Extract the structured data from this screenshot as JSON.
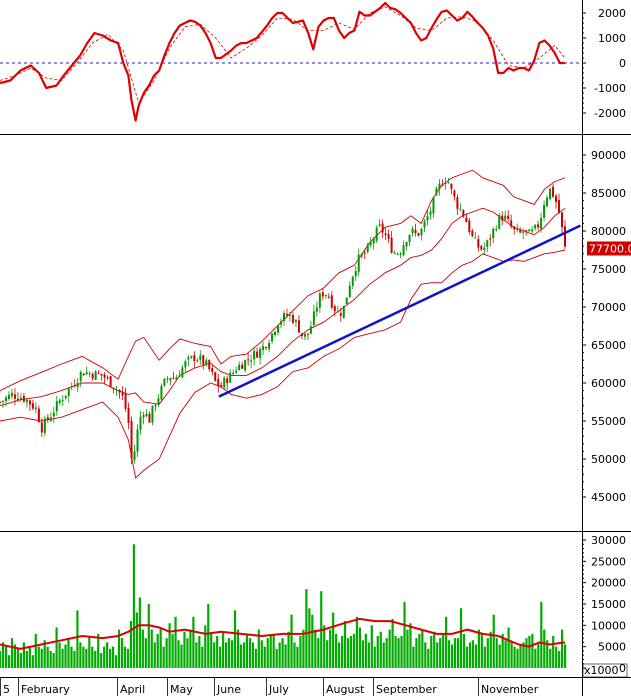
{
  "chart_data": [
    {
      "panel": "oscillator",
      "type": "line",
      "ylim": [
        -2800,
        2500
      ],
      "y_ticks": [
        2000,
        1000,
        0,
        -1000,
        -2000
      ],
      "zero_line": 0,
      "series": [
        {
          "color": "#dd0000",
          "style": "solid",
          "x": [
            0,
            10,
            20,
            30,
            38,
            45,
            55,
            62,
            70,
            78,
            85,
            92,
            100,
            108,
            115,
            120,
            125,
            128,
            132,
            135,
            140,
            145,
            150,
            155,
            160,
            165,
            170,
            175,
            180,
            185,
            190,
            195,
            200,
            205,
            210,
            215,
            220,
            225,
            230,
            235,
            240,
            245,
            250,
            255,
            260,
            265,
            270,
            275,
            280,
            285,
            290,
            295,
            300,
            305,
            310,
            315,
            320,
            325,
            330,
            335,
            340,
            345,
            350,
            355,
            360,
            365,
            370,
            375,
            380,
            385,
            390,
            395,
            400,
            405,
            410,
            415,
            420,
            425,
            430,
            435,
            440,
            445,
            450,
            455,
            460,
            465,
            470,
            475,
            480,
            485,
            490,
            495,
            500,
            505,
            510,
            515,
            520,
            525,
            530,
            535,
            540,
            545,
            550
          ],
          "y": [
            -800,
            -700,
            -300,
            -100,
            -400,
            -1000,
            -900,
            -500,
            -100,
            300,
            800,
            1200,
            1100,
            900,
            800,
            0,
            -500,
            -1500,
            -2300,
            -1700,
            -1200,
            -900,
            -500,
            -300,
            300,
            800,
            1200,
            1500,
            1600,
            1700,
            1650,
            1500,
            1200,
            800,
            200,
            200,
            350,
            500,
            700,
            800,
            800,
            900,
            1000,
            1250,
            1500,
            1800,
            2000,
            2000,
            1800,
            1600,
            1650,
            1700,
            1200,
            550,
            1450,
            1700,
            1800,
            1800,
            1300,
            1000,
            1200,
            1300,
            2050,
            1900,
            1900,
            2050,
            2200,
            2400,
            2200,
            2150,
            2000,
            1800,
            1600,
            1200,
            900,
            1000,
            1400,
            1750,
            2050,
            2100,
            1900,
            1700,
            1800,
            2050,
            1850,
            1600,
            1400,
            1100,
            600,
            -400,
            -400,
            -200,
            -300,
            -200,
            -200,
            -300,
            100,
            800,
            900,
            700,
            400,
            0,
            0
          ]
        },
        {
          "color": "#dd0000",
          "style": "dashed",
          "x": [
            0,
            15,
            30,
            45,
            60,
            75,
            90,
            105,
            120,
            135,
            150,
            165,
            180,
            195,
            210,
            225,
            240,
            255,
            270,
            285,
            300,
            315,
            330,
            345,
            360,
            375,
            390,
            405,
            420,
            435,
            450,
            465,
            480,
            495,
            510,
            525,
            540,
            550
          ],
          "y": [
            -700,
            -500,
            -200,
            -600,
            -700,
            0,
            800,
            1150,
            500,
            -1600,
            -700,
            600,
            1450,
            1550,
            1000,
            200,
            600,
            1100,
            1800,
            1750,
            1300,
            1300,
            1600,
            1350,
            2000,
            2250,
            1900,
            1400,
            1300,
            1800,
            1850,
            1650,
            900,
            -100,
            -200,
            200,
            700,
            200
          ]
        }
      ]
    },
    {
      "panel": "price",
      "type": "candlestick",
      "ylim": [
        42000,
        92000
      ],
      "y_ticks": [
        90000,
        85000,
        80000,
        75000,
        70000,
        65000,
        60000,
        55000,
        50000,
        45000
      ],
      "last_price_label": "77700.0",
      "bollinger": {
        "upper": {
          "x": [
            0,
            20,
            40,
            60,
            80,
            100,
            115,
            125,
            132,
            140,
            155,
            165,
            175,
            190,
            205,
            215,
            225,
            240,
            255,
            270,
            285,
            300,
            315,
            330,
            345,
            360,
            375,
            390,
            400,
            410,
            420,
            430,
            440,
            450,
            460,
            470,
            480,
            490,
            500,
            510,
            520,
            530,
            540,
            550
          ],
          "y": [
            59000,
            60300,
            61400,
            62500,
            63500,
            62000,
            60500,
            63500,
            65500,
            66000,
            63000,
            64500,
            65800,
            65200,
            64800,
            62500,
            63500,
            63800,
            65500,
            67500,
            69500,
            71500,
            72500,
            74500,
            75500,
            78500,
            80500,
            81000,
            82000,
            81000,
            84000,
            86000,
            87000,
            87500,
            88000,
            87000,
            86500,
            86000,
            84500,
            84000,
            83500,
            85500,
            86500,
            87000
          ]
        },
        "middle": {
          "x": [
            0,
            20,
            40,
            60,
            80,
            100,
            115,
            125,
            132,
            140,
            155,
            165,
            175,
            190,
            205,
            215,
            225,
            240,
            255,
            270,
            285,
            300,
            315,
            330,
            345,
            360,
            375,
            390,
            400,
            410,
            420,
            430,
            440,
            450,
            460,
            470,
            480,
            490,
            500,
            510,
            520,
            530,
            540,
            550
          ],
          "y": [
            57000,
            57800,
            58200,
            59000,
            60000,
            60000,
            59000,
            58500,
            58700,
            57500,
            57200,
            59000,
            61000,
            62000,
            62600,
            61500,
            61000,
            61000,
            62000,
            63500,
            65500,
            67000,
            68000,
            69500,
            71000,
            73000,
            74500,
            75500,
            76500,
            76800,
            77500,
            79000,
            81000,
            82000,
            82500,
            83000,
            82500,
            81500,
            80500,
            80000,
            79500,
            80500,
            82000,
            83000
          ]
        },
        "lower": {
          "x": [
            0,
            20,
            40,
            60,
            80,
            100,
            115,
            125,
            132,
            140,
            155,
            165,
            175,
            190,
            205,
            215,
            225,
            240,
            255,
            270,
            285,
            300,
            315,
            330,
            345,
            360,
            375,
            390,
            400,
            410,
            420,
            430,
            440,
            450,
            460,
            470,
            480,
            490,
            500,
            510,
            520,
            530,
            540,
            550
          ],
          "y": [
            55000,
            55500,
            55000,
            55500,
            56500,
            57500,
            55500,
            52500,
            47500,
            48500,
            50000,
            53000,
            56000,
            58800,
            60000,
            59500,
            58500,
            58000,
            58500,
            59500,
            61500,
            62000,
            63500,
            64500,
            66000,
            66500,
            67000,
            68000,
            71000,
            73000,
            73200,
            73200,
            74500,
            75500,
            76000,
            77000,
            76500,
            76000,
            76200,
            76000,
            76500,
            77000,
            77200,
            77500
          ]
        }
      },
      "trendline": {
        "x": [
          213,
          565
        ],
        "y": [
          58200,
          80700
        ],
        "color": "#1111cc"
      },
      "closes_sampled": {
        "x": [
          0,
          12,
          24,
          36,
          40,
          48,
          60,
          72,
          80,
          90,
          100,
          108,
          115,
          120,
          125,
          128,
          132,
          135,
          140,
          145,
          150,
          155,
          160,
          165,
          170,
          175,
          180,
          185,
          190,
          195,
          200,
          205,
          210,
          215,
          220,
          225,
          230,
          235,
          240,
          245,
          250,
          255,
          260,
          265,
          270,
          275,
          280,
          285,
          290,
          295,
          300,
          305,
          310,
          315,
          320,
          325,
          330,
          335,
          340,
          345,
          350,
          355,
          360,
          365,
          370,
          375,
          380,
          385,
          390,
          395,
          400,
          405,
          410,
          415,
          420,
          425,
          430,
          435,
          440,
          445,
          450,
          455,
          460,
          465,
          470,
          475,
          480,
          485,
          490,
          495,
          500,
          505,
          510,
          515,
          520,
          525,
          530,
          535,
          540,
          545,
          550
        ],
        "y": [
          57500,
          58500,
          58000,
          56500,
          54000,
          55500,
          58000,
          60000,
          61500,
          61200,
          61000,
          60000,
          59000,
          58000,
          55000,
          50000,
          51500,
          55000,
          56500,
          55000,
          57000,
          58500,
          60000,
          61000,
          60500,
          61500,
          62500,
          63000,
          63500,
          63000,
          62500,
          61500,
          60000,
          59500,
          60500,
          61000,
          62000,
          62500,
          63000,
          63500,
          64000,
          64500,
          65500,
          66500,
          68000,
          68500,
          69000,
          68500,
          67500,
          66000,
          66500,
          68500,
          71000,
          72000,
          71500,
          70000,
          69000,
          70000,
          73000,
          75000,
          76500,
          77000,
          78000,
          79500,
          80500,
          79500,
          78000,
          77000,
          77500,
          79000,
          80000,
          79500,
          80000,
          81500,
          83000,
          85000,
          86500,
          87000,
          85000,
          83500,
          82500,
          81000,
          79000,
          78000,
          77500,
          78500,
          80000,
          81500,
          82000,
          81000,
          80000,
          79500,
          80000,
          79500,
          80000,
          81000,
          84000,
          85500,
          84500,
          82000,
          77700
        ]
      },
      "candles": {
        "up_color": "#009900",
        "down_color": "#cc0000"
      }
    },
    {
      "panel": "volume",
      "type": "bar",
      "ylim": [
        0,
        31000
      ],
      "y_ticks": [
        30000,
        25000,
        20000,
        15000,
        10000,
        5000,
        0
      ],
      "scale_label": "x1000",
      "bar_color": "#00aa00",
      "volume_values": [
        4000,
        6000,
        5000,
        3000,
        7000,
        5500,
        4500,
        3500,
        6000,
        4000,
        5000,
        3000,
        8000,
        5000,
        4500,
        6500,
        5000,
        4000,
        3500,
        9500,
        6000,
        4500,
        5500,
        7000,
        5000,
        4000,
        13500,
        6000,
        5000,
        4500,
        7500,
        5000,
        4000,
        8000,
        3500,
        5000,
        6000,
        4500,
        5000,
        3000,
        9000,
        7000,
        5000,
        4500,
        11000,
        29000,
        13000,
        16500,
        9000,
        7000,
        15000,
        9000,
        6000,
        8000,
        9500,
        5000,
        7000,
        10500,
        8000,
        12000,
        6500,
        5500,
        8500,
        7000,
        9000,
        12000,
        6000,
        7500,
        5000,
        10000,
        15000,
        8000,
        6000,
        7500,
        5000,
        8500,
        6000,
        7000,
        6500,
        13500,
        9000,
        5500,
        6000,
        8000,
        7000,
        6000,
        4500,
        9000,
        6500,
        5000,
        7000,
        7500,
        8000,
        4500,
        6000,
        7000,
        5500,
        8500,
        12500,
        6000,
        5000,
        7500,
        9000,
        18500,
        14000,
        12500,
        9000,
        7000,
        18000,
        10000,
        6500,
        9000,
        13000,
        8000,
        6000,
        7500,
        11000,
        7000,
        7500,
        8000,
        12000,
        9500,
        6500,
        8000,
        6000,
        10000,
        5000,
        7500,
        8500,
        6000,
        7000,
        9000,
        11500,
        7500,
        7000,
        7500,
        15500,
        9000,
        10500,
        5000,
        7000,
        8000,
        9000,
        6000,
        4500,
        7500,
        8500,
        6000,
        7000,
        8000,
        12000,
        6500,
        5500,
        7000,
        7000,
        14000,
        8000,
        5000,
        6000,
        6500,
        5500,
        9000,
        8000,
        5000,
        7000,
        8500,
        12500,
        7000,
        5500,
        8000,
        6500,
        9500,
        6000,
        5000,
        4500,
        5500,
        6000,
        7000,
        7500,
        8000,
        4500,
        6000,
        15500,
        9000,
        6500,
        4500,
        7500,
        5000,
        4000,
        9000,
        5500
      ],
      "ma": {
        "color": "#dd0000",
        "x": [
          0,
          20,
          40,
          60,
          80,
          100,
          115,
          125,
          135,
          145,
          155,
          165,
          180,
          200,
          215,
          235,
          255,
          275,
          295,
          315,
          335,
          350,
          365,
          380,
          395,
          410,
          425,
          440,
          455,
          470,
          485,
          495,
          505,
          515,
          525,
          535,
          550
        ],
        "y": [
          5500,
          4500,
          5500,
          6500,
          7500,
          7000,
          7500,
          8500,
          10000,
          10000,
          9500,
          8500,
          9000,
          8000,
          8500,
          8000,
          7500,
          8000,
          8000,
          9000,
          10500,
          11500,
          11000,
          11000,
          10000,
          9000,
          8000,
          8000,
          9000,
          8000,
          7500,
          6500,
          5500,
          5000,
          6000,
          5500,
          6000
        ]
      }
    },
    {
      "panel": "x_axis",
      "type": "axis",
      "month_labels": [
        "5",
        "February",
        "April",
        "May",
        "June",
        "July",
        "August",
        "September",
        "November"
      ]
    }
  ]
}
